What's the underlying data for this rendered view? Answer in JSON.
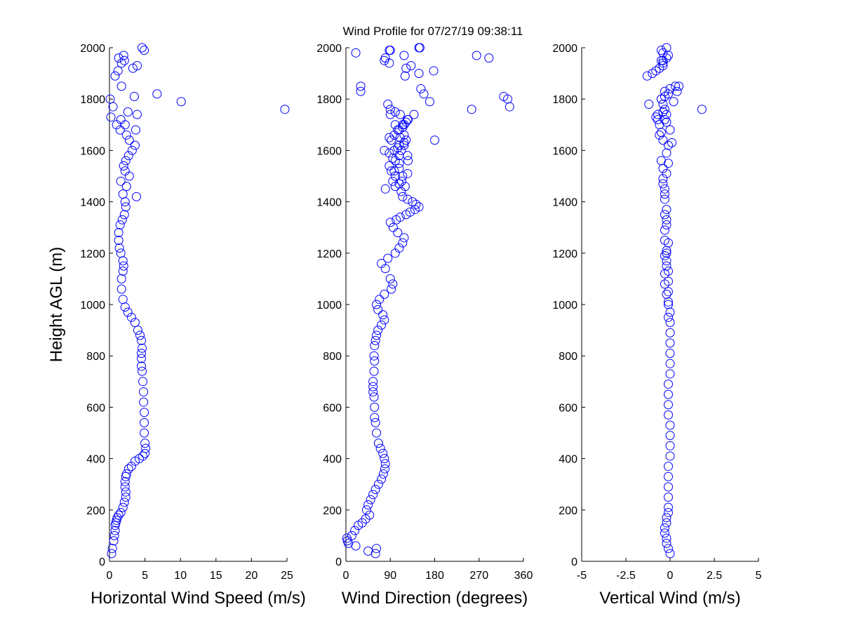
{
  "figure": {
    "title": "Wind Profile for  07/27/19 09:38:11",
    "marker_color": "#0000ff"
  },
  "chart_data": [
    {
      "type": "scatter",
      "title": "",
      "xlabel": "Horizontal Wind Speed (m/s)",
      "ylabel": "Height AGL (m)",
      "xlim": [
        0,
        25
      ],
      "ylim": [
        0,
        2000
      ],
      "x_ticks": [
        0,
        5,
        10,
        15,
        20,
        25
      ],
      "y_ticks": [
        0,
        200,
        400,
        600,
        800,
        1000,
        1200,
        1400,
        1600,
        1800,
        2000
      ],
      "x_tick_labels": [
        "0",
        "5",
        "10",
        "15",
        "20",
        "25"
      ],
      "y_tick_labels": [
        "0",
        "200",
        "400",
        "600",
        "800",
        "1000",
        "1200",
        "1400",
        "1600",
        "1800",
        "2000"
      ],
      "grid": false,
      "marker": "open-circle",
      "series": [
        {
          "x": [
            0.3,
            0.4,
            0.6,
            0.7,
            0.8,
            0.8,
            0.9,
            1.0,
            1.1,
            1.3,
            1.6,
            1.9,
            2.1,
            2.3,
            2.3,
            2.2,
            2.2,
            2.3,
            2.4,
            2.7,
            3.1,
            3.6,
            4.2,
            4.7,
            5.0,
            5.1,
            5.0,
            4.9,
            4.9,
            4.9,
            4.8,
            4.8,
            4.7,
            4.6,
            4.5,
            4.5,
            4.5,
            4.6,
            4.5,
            4.3,
            4.0,
            3.6,
            3.1,
            2.6,
            2.2,
            1.9,
            1.7,
            1.7,
            1.9,
            2.0,
            1.9,
            1.6,
            1.4,
            1.3,
            1.3,
            1.5,
            1.8,
            2.1,
            2.3,
            2.2,
            1.9,
            2.4,
            1.6,
            3.8,
            2.8,
            2.2,
            2.0,
            2.3,
            2.7,
            3.2,
            3.6,
            2.8,
            2.4,
            1.5,
            1.0,
            1.6,
            3.9,
            2.2,
            3.7,
            2.6,
            0.2,
            0.5,
            0.1,
            24.7,
            10.1,
            6.7,
            3.5,
            1.7,
            0.8,
            1.2,
            3.3,
            1.7,
            2.1,
            3.9,
            1.3,
            2.0,
            4.9,
            4.6
          ],
          "y": [
            30,
            50,
            80,
            100,
            120,
            140,
            150,
            160,
            170,
            180,
            190,
            210,
            230,
            250,
            270,
            290,
            310,
            330,
            340,
            360,
            370,
            390,
            400,
            410,
            420,
            440,
            460,
            500,
            540,
            580,
            620,
            660,
            700,
            740,
            760,
            790,
            810,
            830,
            860,
            880,
            900,
            930,
            950,
            970,
            990,
            1020,
            1060,
            1100,
            1130,
            1150,
            1170,
            1200,
            1220,
            1250,
            1280,
            1310,
            1330,
            1350,
            1380,
            1400,
            1430,
            1460,
            1480,
            1420,
            1500,
            1520,
            1540,
            1560,
            1580,
            1600,
            1620,
            1640,
            1660,
            1680,
            1700,
            1720,
            1740,
            1700,
            1680,
            1750,
            1730,
            1770,
            1800,
            1760,
            1790,
            1820,
            1810,
            1850,
            1890,
            1910,
            1920,
            1940,
            1950,
            1930,
            1960,
            1970,
            1990,
            2000
          ]
        }
      ]
    },
    {
      "type": "scatter",
      "title": "",
      "xlabel": "Wind Direction (degrees)",
      "ylabel": "",
      "xlim": [
        0,
        360
      ],
      "ylim": [
        0,
        2000
      ],
      "x_ticks": [
        0,
        90,
        180,
        270,
        360
      ],
      "y_ticks": [
        0,
        200,
        400,
        600,
        800,
        1000,
        1200,
        1400,
        1600,
        1800,
        2000
      ],
      "x_tick_labels": [
        "0",
        "90",
        "180",
        "270",
        "360"
      ],
      "y_tick_labels": [
        "0",
        "200",
        "400",
        "600",
        "800",
        "1000",
        "1200",
        "1400",
        "1600",
        "1800",
        "2000"
      ],
      "grid": false,
      "marker": "open-circle",
      "series": [
        {
          "x": [
            45,
            62,
            60,
            20,
            2,
            5,
            3,
            12,
            18,
            25,
            33,
            40,
            48,
            42,
            45,
            50,
            55,
            60,
            66,
            72,
            76,
            79,
            80,
            78,
            75,
            70,
            66,
            62,
            60,
            58,
            58,
            57,
            55,
            55,
            55,
            57,
            58,
            57,
            58,
            60,
            62,
            65,
            72,
            78,
            75,
            65,
            62,
            68,
            78,
            92,
            95,
            90,
            80,
            72,
            85,
            100,
            108,
            115,
            118,
            105,
            96,
            90,
            102,
            110,
            122,
            130,
            140,
            148,
            142,
            135,
            125,
            115,
            112,
            120,
            108,
            95,
            80,
            100,
            92,
            88,
            100,
            108,
            112,
            118,
            122,
            98,
            105,
            115,
            125,
            110,
            100,
            90,
            85,
            115,
            122,
            108,
            126,
            88,
            105,
            113,
            98,
            100,
            115,
            125,
            108,
            95,
            78,
            88,
            108,
            118,
            126,
            138,
            118,
            108,
            98,
            92,
            180,
            125,
            118,
            110,
            100,
            90,
            30,
            158,
            170,
            255,
            320,
            328,
            332,
            30,
            152,
            120,
            148,
            122,
            178,
            132,
            78,
            88,
            80,
            90,
            118,
            148,
            290,
            265,
            20,
            88,
            150
          ],
          "y": [
            40,
            50,
            30,
            60,
            90,
            70,
            80,
            100,
            120,
            140,
            150,
            165,
            180,
            200,
            220,
            240,
            260,
            280,
            300,
            320,
            340,
            360,
            380,
            400,
            420,
            440,
            460,
            500,
            540,
            560,
            600,
            640,
            660,
            680,
            700,
            740,
            780,
            800,
            840,
            860,
            880,
            900,
            920,
            940,
            960,
            980,
            1000,
            1020,
            1040,
            1060,
            1080,
            1100,
            1140,
            1160,
            1180,
            1200,
            1220,
            1240,
            1260,
            1280,
            1300,
            1320,
            1330,
            1340,
            1350,
            1360,
            1370,
            1380,
            1390,
            1400,
            1410,
            1420,
            1440,
            1460,
            1470,
            1480,
            1450,
            1500,
            1520,
            1540,
            1560,
            1580,
            1600,
            1620,
            1640,
            1660,
            1680,
            1700,
            1720,
            1740,
            1750,
            1760,
            1780,
            1690,
            1710,
            1550,
            1560,
            1590,
            1610,
            1480,
            1520,
            1460,
            1500,
            1510,
            1530,
            1570,
            1600,
            1650,
            1680,
            1660,
            1720,
            1740,
            1700,
            1620,
            1600,
            1640,
            1640,
            1580,
            1630,
            1650,
            1700,
            1740,
            1850,
            1820,
            1790,
            1760,
            1810,
            1800,
            1770,
            1830,
            1840,
            1890,
            1900,
            1920,
            1910,
            1930,
            1950,
            1940,
            1960,
            1990,
            1970,
            2000,
            1960,
            1970,
            1980,
            1990,
            2000
          ]
        }
      ]
    },
    {
      "type": "scatter",
      "title": "",
      "xlabel": "Vertical Wind (m/s)",
      "ylabel": "",
      "xlim": [
        -5,
        5
      ],
      "ylim": [
        0,
        2000
      ],
      "x_ticks": [
        -5,
        -2.5,
        0,
        2.5,
        5
      ],
      "y_ticks": [
        0,
        200,
        400,
        600,
        800,
        1000,
        1200,
        1400,
        1600,
        1800,
        2000
      ],
      "x_tick_labels": [
        "-5",
        "-2.5",
        "0",
        "2.5",
        "5"
      ],
      "y_tick_labels": [
        "0",
        "200",
        "400",
        "600",
        "800",
        "1000",
        "1200",
        "1400",
        "1600",
        "1800",
        "2000"
      ],
      "grid": false,
      "marker": "open-circle",
      "series": [
        {
          "x": [
            0.0,
            -0.1,
            -0.2,
            -0.2,
            -0.3,
            -0.3,
            -0.2,
            -0.2,
            -0.1,
            -0.1,
            -0.1,
            -0.1,
            -0.1,
            -0.1,
            0.0,
            0.0,
            0.0,
            0.0,
            -0.1,
            -0.1,
            -0.1,
            -0.1,
            0.0,
            0.0,
            0.0,
            0.0,
            0.0,
            0.0,
            0.0,
            -0.1,
            -0.1,
            -0.1,
            -0.1,
            -0.2,
            -0.2,
            -0.3,
            -0.3,
            -0.2,
            -0.2,
            -0.3,
            -0.3,
            -0.4,
            -0.3,
            -0.2,
            -0.1,
            -0.2,
            -0.3,
            -0.2,
            -0.3,
            -0.3,
            -0.2,
            -0.1,
            -0.1,
            -0.3,
            -0.4,
            -0.2,
            -0.4,
            -0.1,
            -0.5,
            -0.6,
            -0.7,
            -0.8,
            -0.7,
            -0.6,
            -0.5,
            -0.4,
            -0.2,
            -0.1,
            0.0,
            -0.2,
            0.1,
            -0.3,
            -0.4,
            -0.5,
            -0.3,
            0.3,
            -0.1,
            -0.3,
            0.2,
            0.0,
            0.5,
            0.4,
            1.8,
            -1.2,
            -0.4,
            -0.2,
            -0.3,
            -1.0,
            -0.8,
            -0.6,
            -1.3,
            -0.4,
            -0.5,
            -0.4,
            -0.2,
            -0.1,
            -0.4,
            -0.5,
            -0.4,
            -0.2,
            -0.5
          ],
          "y": [
            30,
            50,
            70,
            90,
            110,
            130,
            150,
            170,
            190,
            210,
            250,
            290,
            330,
            370,
            410,
            450,
            490,
            530,
            570,
            610,
            650,
            690,
            730,
            770,
            810,
            850,
            890,
            930,
            970,
            1010,
            1050,
            1090,
            1130,
            1170,
            1210,
            1250,
            1290,
            1330,
            1370,
            1410,
            1450,
            1490,
            1350,
            1310,
            1240,
            1200,
            1190,
            1150,
            1120,
            1080,
            1040,
            1000,
            950,
            1430,
            1470,
            1510,
            1530,
            1550,
            1560,
            1700,
            1720,
            1730,
            1740,
            1660,
            1670,
            1640,
            1590,
            1620,
            1680,
            1710,
            1630,
            1760,
            1780,
            1800,
            1830,
            1850,
            1820,
            1810,
            1790,
            1840,
            1850,
            1830,
            1760,
            1780,
            1750,
            1740,
            1720,
            1900,
            1910,
            1920,
            1890,
            1930,
            1950,
            1940,
            1960,
            1970,
            1980,
            1990,
            1950,
            2000,
            1800
          ]
        }
      ]
    }
  ]
}
